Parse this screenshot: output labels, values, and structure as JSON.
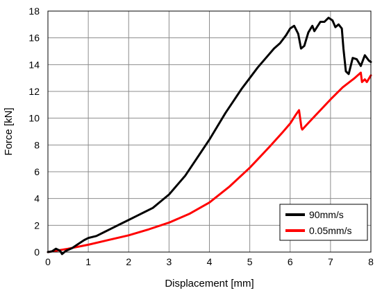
{
  "chart_data": {
    "type": "line",
    "xlabel": "Displacement [mm]",
    "ylabel": "Force [kN]",
    "xlim": [
      0,
      8
    ],
    "ylim": [
      0,
      18
    ],
    "x_ticks": [
      "0",
      "1",
      "2",
      "3",
      "4",
      "5",
      "6",
      "7",
      "8"
    ],
    "y_ticks": [
      "0",
      "2",
      "4",
      "6",
      "8",
      "10",
      "12",
      "14",
      "16",
      "18"
    ],
    "grid": true,
    "legend_position": "bottom-right",
    "series": [
      {
        "name": "90mm/s",
        "color": "#000000",
        "points": [
          [
            0,
            0
          ],
          [
            0.1,
            0.05
          ],
          [
            0.2,
            0.25
          ],
          [
            0.3,
            0.1
          ],
          [
            0.35,
            -0.15
          ],
          [
            0.45,
            0.1
          ],
          [
            0.6,
            0.3
          ],
          [
            0.75,
            0.6
          ],
          [
            0.9,
            0.9
          ],
          [
            1.0,
            1.05
          ],
          [
            1.2,
            1.2
          ],
          [
            1.4,
            1.5
          ],
          [
            1.6,
            1.8
          ],
          [
            1.8,
            2.1
          ],
          [
            2.0,
            2.4
          ],
          [
            2.2,
            2.7
          ],
          [
            2.4,
            3.0
          ],
          [
            2.6,
            3.3
          ],
          [
            2.8,
            3.8
          ],
          [
            3.0,
            4.3
          ],
          [
            3.2,
            5.0
          ],
          [
            3.4,
            5.7
          ],
          [
            3.6,
            6.6
          ],
          [
            3.8,
            7.5
          ],
          [
            4.0,
            8.4
          ],
          [
            4.2,
            9.4
          ],
          [
            4.4,
            10.4
          ],
          [
            4.6,
            11.3
          ],
          [
            4.8,
            12.2
          ],
          [
            5.0,
            13.0
          ],
          [
            5.2,
            13.8
          ],
          [
            5.4,
            14.5
          ],
          [
            5.6,
            15.2
          ],
          [
            5.75,
            15.6
          ],
          [
            5.9,
            16.2
          ],
          [
            6.0,
            16.7
          ],
          [
            6.1,
            16.9
          ],
          [
            6.2,
            16.3
          ],
          [
            6.27,
            15.2
          ],
          [
            6.35,
            15.4
          ],
          [
            6.45,
            16.4
          ],
          [
            6.55,
            16.9
          ],
          [
            6.6,
            16.5
          ],
          [
            6.75,
            17.2
          ],
          [
            6.85,
            17.2
          ],
          [
            6.95,
            17.5
          ],
          [
            7.05,
            17.3
          ],
          [
            7.12,
            16.8
          ],
          [
            7.2,
            17.0
          ],
          [
            7.28,
            16.7
          ],
          [
            7.32,
            15.2
          ],
          [
            7.38,
            13.5
          ],
          [
            7.45,
            13.3
          ],
          [
            7.55,
            14.5
          ],
          [
            7.65,
            14.4
          ],
          [
            7.75,
            13.9
          ],
          [
            7.85,
            14.7
          ],
          [
            7.95,
            14.3
          ],
          [
            8.0,
            14.2
          ]
        ]
      },
      {
        "name": "0.05mm/s",
        "color": "#ff0000",
        "points": [
          [
            0,
            0
          ],
          [
            0.5,
            0.25
          ],
          [
            1.0,
            0.55
          ],
          [
            1.5,
            0.9
          ],
          [
            2.0,
            1.25
          ],
          [
            2.5,
            1.7
          ],
          [
            3.0,
            2.2
          ],
          [
            3.5,
            2.85
          ],
          [
            4.0,
            3.7
          ],
          [
            4.5,
            4.9
          ],
          [
            5.0,
            6.3
          ],
          [
            5.5,
            7.9
          ],
          [
            5.8,
            8.9
          ],
          [
            6.0,
            9.6
          ],
          [
            6.15,
            10.3
          ],
          [
            6.22,
            10.6
          ],
          [
            6.28,
            9.3
          ],
          [
            6.3,
            9.15
          ],
          [
            6.5,
            9.8
          ],
          [
            7.0,
            11.4
          ],
          [
            7.3,
            12.3
          ],
          [
            7.6,
            13.0
          ],
          [
            7.75,
            13.4
          ],
          [
            7.78,
            12.7
          ],
          [
            7.85,
            12.9
          ],
          [
            7.9,
            12.7
          ],
          [
            8.0,
            13.2
          ]
        ]
      }
    ]
  }
}
